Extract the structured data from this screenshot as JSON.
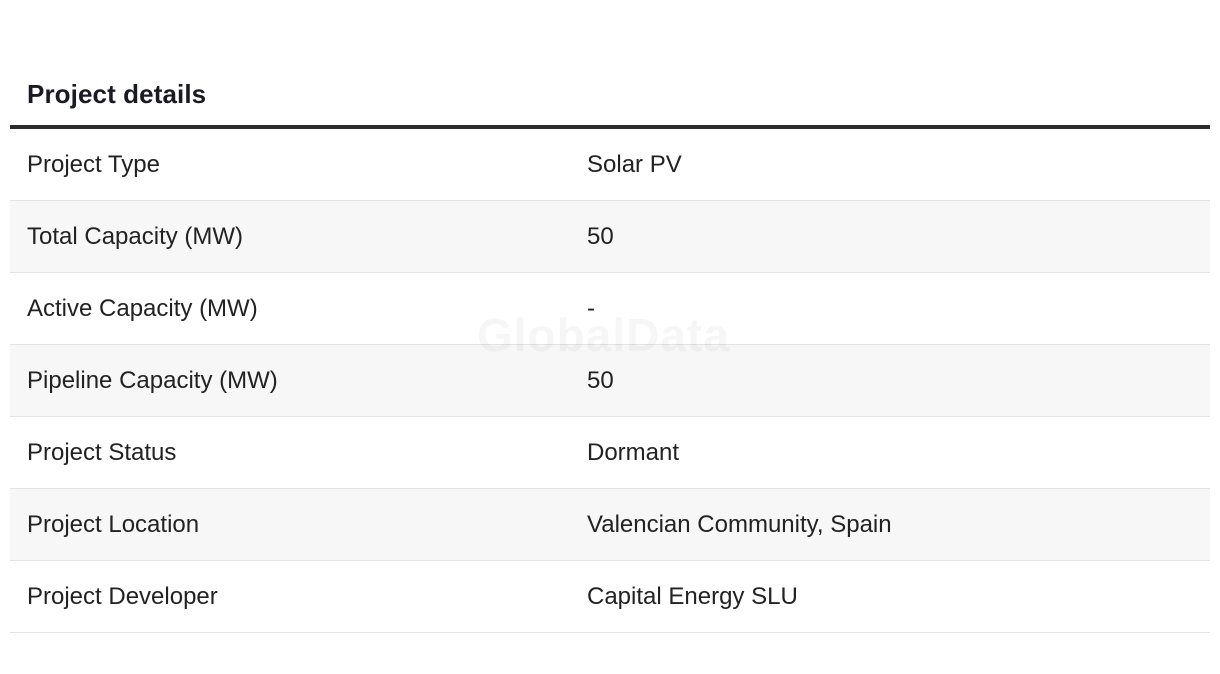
{
  "section": {
    "title": "Project details"
  },
  "watermark": "GlobalData",
  "rows": [
    {
      "label": "Project Type",
      "value": "Solar PV"
    },
    {
      "label": "Total Capacity (MW)",
      "value": "50"
    },
    {
      "label": "Active Capacity (MW)",
      "value": "-"
    },
    {
      "label": "Pipeline Capacity (MW)",
      "value": "50"
    },
    {
      "label": "Project Status",
      "value": "Dormant"
    },
    {
      "label": "Project Location",
      "value": "Valencian Community, Spain"
    },
    {
      "label": "Project Developer",
      "value": "Capital Energy SLU"
    }
  ],
  "colors": {
    "title": "#1a1a24",
    "rule": "#2b2b2b",
    "row_alt": "#f7f7f7",
    "row_border": "#e3e3e3"
  }
}
